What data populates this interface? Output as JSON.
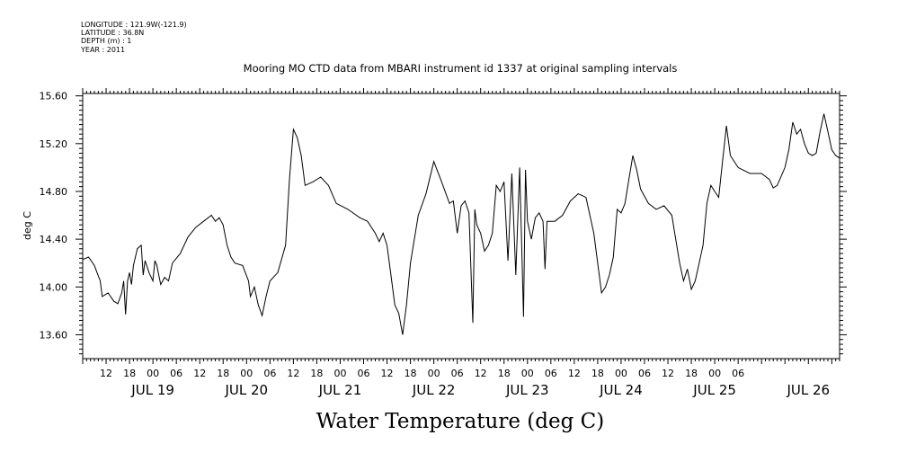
{
  "meta_lines": [
    "LONGITUDE : 121.9W(-121.9)",
    "LATITUDE : 36.8N",
    "DEPTH (m) : 1",
    "YEAR : 2011"
  ],
  "footer_title": "Water Temperature (deg C)",
  "chart_data": {
    "type": "line",
    "title": "Mooring MO CTD data from MBARI instrument id 1337 at original sampling intervals",
    "ylabel": "deg C",
    "xlabel": "",
    "ylim": [
      13.4,
      15.62
    ],
    "xlim": [
      "2011-07-18T06:00",
      "2011-07-26T08:00"
    ],
    "y_ticks": [
      "13.60",
      "14.00",
      "14.40",
      "14.80",
      "15.20",
      "15.60"
    ],
    "x_hour_labels": [
      "12",
      "18",
      "00",
      "06",
      "12",
      "18",
      "00",
      "06",
      "12",
      "18",
      "00",
      "06",
      "12",
      "18",
      "00",
      "06",
      "12",
      "18",
      "00",
      "06",
      "12",
      "18",
      "00",
      "06",
      "12",
      "18",
      "00",
      "06"
    ],
    "x_day_labels": [
      "JUL 19",
      "JUL 20",
      "JUL 21",
      "JUL 22",
      "JUL 23",
      "JUL 24",
      "JUL 25",
      "JUL 26"
    ],
    "grid": false,
    "series": [
      {
        "name": "",
        "points": [
          [
            "2011-07-18T06:00",
            14.23
          ],
          [
            "2011-07-18T07:30",
            14.25
          ],
          [
            "2011-07-18T09:00",
            14.18
          ],
          [
            "2011-07-18T10:30",
            14.05
          ],
          [
            "2011-07-18T11:00",
            13.92
          ],
          [
            "2011-07-18T12:30",
            13.95
          ],
          [
            "2011-07-18T14:00",
            13.88
          ],
          [
            "2011-07-18T15:00",
            13.86
          ],
          [
            "2011-07-18T16:00",
            13.95
          ],
          [
            "2011-07-18T16:30",
            14.05
          ],
          [
            "2011-07-18T17:00",
            13.77
          ],
          [
            "2011-07-18T17:30",
            14.05
          ],
          [
            "2011-07-18T18:00",
            14.12
          ],
          [
            "2011-07-18T18:30",
            14.02
          ],
          [
            "2011-07-18T19:00",
            14.18
          ],
          [
            "2011-07-18T20:00",
            14.32
          ],
          [
            "2011-07-18T21:00",
            14.35
          ],
          [
            "2011-07-18T21:30",
            14.1
          ],
          [
            "2011-07-18T22:00",
            14.22
          ],
          [
            "2011-07-18T23:00",
            14.12
          ],
          [
            "2011-07-19T00:00",
            14.05
          ],
          [
            "2011-07-19T00:30",
            14.22
          ],
          [
            "2011-07-19T01:00",
            14.18
          ],
          [
            "2011-07-19T01:30",
            14.1
          ],
          [
            "2011-07-19T02:00",
            14.02
          ],
          [
            "2011-07-19T03:00",
            14.08
          ],
          [
            "2011-07-19T04:00",
            14.05
          ],
          [
            "2011-07-19T05:00",
            14.2
          ],
          [
            "2011-07-19T07:00",
            14.28
          ],
          [
            "2011-07-19T09:00",
            14.42
          ],
          [
            "2011-07-19T11:00",
            14.5
          ],
          [
            "2011-07-19T13:00",
            14.55
          ],
          [
            "2011-07-19T15:00",
            14.6
          ],
          [
            "2011-07-19T16:00",
            14.55
          ],
          [
            "2011-07-19T17:00",
            14.58
          ],
          [
            "2011-07-19T18:00",
            14.52
          ],
          [
            "2011-07-19T19:00",
            14.35
          ],
          [
            "2011-07-19T20:00",
            14.25
          ],
          [
            "2011-07-19T21:00",
            14.2
          ],
          [
            "2011-07-19T23:00",
            14.18
          ],
          [
            "2011-07-20T00:30",
            14.05
          ],
          [
            "2011-07-20T01:00",
            13.92
          ],
          [
            "2011-07-20T02:00",
            14.0
          ],
          [
            "2011-07-20T03:00",
            13.85
          ],
          [
            "2011-07-20T04:00",
            13.76
          ],
          [
            "2011-07-20T05:00",
            13.92
          ],
          [
            "2011-07-20T06:00",
            14.05
          ],
          [
            "2011-07-20T08:00",
            14.12
          ],
          [
            "2011-07-20T10:00",
            14.35
          ],
          [
            "2011-07-20T11:00",
            14.9
          ],
          [
            "2011-07-20T12:00",
            15.32
          ],
          [
            "2011-07-20T13:00",
            15.25
          ],
          [
            "2011-07-20T14:00",
            15.1
          ],
          [
            "2011-07-20T15:00",
            14.85
          ],
          [
            "2011-07-20T17:00",
            14.88
          ],
          [
            "2011-07-20T19:00",
            14.92
          ],
          [
            "2011-07-20T21:00",
            14.85
          ],
          [
            "2011-07-20T23:00",
            14.7
          ],
          [
            "2011-07-21T02:00",
            14.65
          ],
          [
            "2011-07-21T05:00",
            14.58
          ],
          [
            "2011-07-21T07:00",
            14.55
          ],
          [
            "2011-07-21T09:00",
            14.45
          ],
          [
            "2011-07-21T10:00",
            14.38
          ],
          [
            "2011-07-21T11:00",
            14.45
          ],
          [
            "2011-07-21T12:00",
            14.35
          ],
          [
            "2011-07-21T13:00",
            14.1
          ],
          [
            "2011-07-21T14:00",
            13.85
          ],
          [
            "2011-07-21T15:00",
            13.78
          ],
          [
            "2011-07-21T16:00",
            13.6
          ],
          [
            "2011-07-21T17:00",
            13.85
          ],
          [
            "2011-07-21T18:00",
            14.2
          ],
          [
            "2011-07-21T20:00",
            14.6
          ],
          [
            "2011-07-21T22:00",
            14.78
          ],
          [
            "2011-07-22T00:00",
            15.05
          ],
          [
            "2011-07-22T02:00",
            14.88
          ],
          [
            "2011-07-22T04:00",
            14.7
          ],
          [
            "2011-07-22T05:00",
            14.72
          ],
          [
            "2011-07-22T06:00",
            14.45
          ],
          [
            "2011-07-22T07:00",
            14.68
          ],
          [
            "2011-07-22T08:00",
            14.72
          ],
          [
            "2011-07-22T09:00",
            14.62
          ],
          [
            "2011-07-22T10:00",
            13.7
          ],
          [
            "2011-07-22T10:30",
            14.65
          ],
          [
            "2011-07-22T11:00",
            14.52
          ],
          [
            "2011-07-22T12:00",
            14.45
          ],
          [
            "2011-07-22T13:00",
            14.3
          ],
          [
            "2011-07-22T14:00",
            14.35
          ],
          [
            "2011-07-22T15:00",
            14.45
          ],
          [
            "2011-07-22T16:00",
            14.85
          ],
          [
            "2011-07-22T17:00",
            14.8
          ],
          [
            "2011-07-22T18:00",
            14.88
          ],
          [
            "2011-07-22T19:00",
            14.22
          ],
          [
            "2011-07-22T20:00",
            14.95
          ],
          [
            "2011-07-22T21:00",
            14.1
          ],
          [
            "2011-07-22T22:00",
            15.0
          ],
          [
            "2011-07-22T23:00",
            13.75
          ],
          [
            "2011-07-22T23:30",
            14.98
          ],
          [
            "2011-07-23T00:00",
            14.55
          ],
          [
            "2011-07-23T01:00",
            14.4
          ],
          [
            "2011-07-23T02:00",
            14.58
          ],
          [
            "2011-07-23T03:00",
            14.62
          ],
          [
            "2011-07-23T04:00",
            14.55
          ],
          [
            "2011-07-23T04:30",
            14.15
          ],
          [
            "2011-07-23T05:00",
            14.55
          ],
          [
            "2011-07-23T07:00",
            14.55
          ],
          [
            "2011-07-23T09:00",
            14.6
          ],
          [
            "2011-07-23T11:00",
            14.72
          ],
          [
            "2011-07-23T13:00",
            14.78
          ],
          [
            "2011-07-23T15:00",
            14.75
          ],
          [
            "2011-07-23T16:00",
            14.6
          ],
          [
            "2011-07-23T17:00",
            14.45
          ],
          [
            "2011-07-23T18:00",
            14.2
          ],
          [
            "2011-07-23T19:00",
            13.95
          ],
          [
            "2011-07-23T20:00",
            14.0
          ],
          [
            "2011-07-23T21:00",
            14.1
          ],
          [
            "2011-07-23T22:00",
            14.25
          ],
          [
            "2011-07-23T23:00",
            14.65
          ],
          [
            "2011-07-24T00:00",
            14.62
          ],
          [
            "2011-07-24T01:00",
            14.7
          ],
          [
            "2011-07-24T02:00",
            14.9
          ],
          [
            "2011-07-24T03:00",
            15.1
          ],
          [
            "2011-07-24T04:00",
            14.98
          ],
          [
            "2011-07-24T05:00",
            14.82
          ],
          [
            "2011-07-24T07:00",
            14.7
          ],
          [
            "2011-07-24T09:00",
            14.65
          ],
          [
            "2011-07-24T11:00",
            14.68
          ],
          [
            "2011-07-24T13:00",
            14.6
          ],
          [
            "2011-07-24T14:00",
            14.4
          ],
          [
            "2011-07-24T15:00",
            14.2
          ],
          [
            "2011-07-24T16:00",
            14.05
          ],
          [
            "2011-07-24T17:00",
            14.15
          ],
          [
            "2011-07-24T18:00",
            13.98
          ],
          [
            "2011-07-24T19:00",
            14.05
          ],
          [
            "2011-07-24T20:00",
            14.2
          ],
          [
            "2011-07-24T21:00",
            14.35
          ],
          [
            "2011-07-24T22:00",
            14.7
          ],
          [
            "2011-07-24T23:00",
            14.85
          ],
          [
            "2011-07-25T00:00",
            14.8
          ],
          [
            "2011-07-25T01:00",
            14.75
          ],
          [
            "2011-07-25T02:00",
            15.05
          ],
          [
            "2011-07-25T03:00",
            15.35
          ],
          [
            "2011-07-25T04:00",
            15.1
          ],
          [
            "2011-07-25T06:00",
            15.0
          ],
          [
            "2011-07-25T09:00",
            14.95
          ],
          [
            "2011-07-25T12:00",
            14.95
          ],
          [
            "2011-07-25T14:00",
            14.9
          ],
          [
            "2011-07-25T15:00",
            14.83
          ],
          [
            "2011-07-25T16:00",
            14.85
          ],
          [
            "2011-07-25T18:00",
            15.0
          ],
          [
            "2011-07-25T19:00",
            15.15
          ],
          [
            "2011-07-25T20:00",
            15.38
          ],
          [
            "2011-07-25T21:00",
            15.28
          ],
          [
            "2011-07-25T22:00",
            15.32
          ],
          [
            "2011-07-25T23:00",
            15.2
          ],
          [
            "2011-07-26T00:00",
            15.12
          ],
          [
            "2011-07-26T01:00",
            15.1
          ],
          [
            "2011-07-26T02:00",
            15.12
          ],
          [
            "2011-07-26T03:00",
            15.3
          ],
          [
            "2011-07-26T04:00",
            15.45
          ],
          [
            "2011-07-26T05:00",
            15.3
          ],
          [
            "2011-07-26T06:00",
            15.15
          ],
          [
            "2011-07-26T07:00",
            15.1
          ],
          [
            "2011-07-26T08:00",
            15.08
          ]
        ]
      }
    ]
  }
}
